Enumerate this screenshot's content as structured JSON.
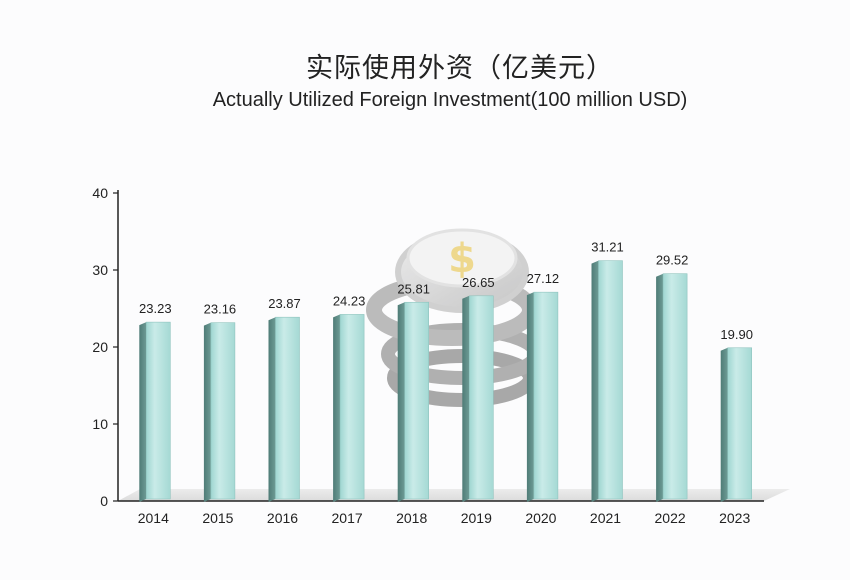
{
  "chart_data": {
    "type": "bar",
    "title": "实际使用外资（亿美元）",
    "subtitle": "Actually Utilized Foreign Investment(100 million USD)",
    "categories": [
      "2014",
      "2015",
      "2016",
      "2017",
      "2018",
      "2019",
      "2020",
      "2021",
      "2022",
      "2023"
    ],
    "values": [
      23.23,
      23.16,
      23.87,
      24.23,
      25.81,
      26.65,
      27.12,
      31.21,
      29.52,
      19.9
    ],
    "value_labels": [
      "23.23",
      "23.16",
      "23.87",
      "24.23",
      "25.81",
      "26.65",
      "27.12",
      "31.21",
      "29.52",
      "19.90"
    ],
    "ylim": [
      0,
      40
    ],
    "yticks": [
      "0",
      "10",
      "20",
      "30",
      "40"
    ],
    "xlabel": "",
    "ylabel": "",
    "grid": false,
    "bar_color": "#a8dad6",
    "bar_side_color": "#5e8c86",
    "decoration": "coin-stack-icon"
  }
}
